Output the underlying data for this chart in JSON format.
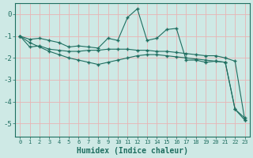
{
  "xlabel": "Humidex (Indice chaleur)",
  "background_color": "#cee9e5",
  "grid_color": "#e8b4b4",
  "line_color": "#1e6e60",
  "xlim": [
    -0.5,
    23.5
  ],
  "ylim": [
    -5.6,
    0.5
  ],
  "yticks": [
    0,
    -1,
    -2,
    -3,
    -4,
    -5
  ],
  "xticks": [
    0,
    1,
    2,
    3,
    4,
    5,
    6,
    7,
    8,
    9,
    10,
    11,
    12,
    13,
    14,
    15,
    16,
    17,
    18,
    19,
    20,
    21,
    22,
    23
  ],
  "line1_x": [
    0,
    1,
    2,
    3,
    4,
    5,
    6,
    7,
    8,
    9,
    10,
    11,
    12,
    13,
    14,
    15,
    16,
    17,
    18,
    19,
    20,
    21,
    22,
    23
  ],
  "line1_y": [
    -1.0,
    -1.15,
    -1.1,
    -1.2,
    -1.3,
    -1.5,
    -1.45,
    -1.5,
    -1.55,
    -1.1,
    -1.2,
    -0.15,
    0.25,
    -1.2,
    -1.1,
    -0.7,
    -0.65,
    -2.1,
    -2.1,
    -2.2,
    -2.15,
    -2.2,
    -4.35,
    -4.75
  ],
  "line2_x": [
    0,
    1,
    2,
    3,
    4,
    5,
    6,
    7,
    8,
    9,
    10,
    11,
    12,
    13,
    14,
    15,
    16,
    17,
    18,
    19,
    20,
    21,
    22,
    23
  ],
  "line2_y": [
    -1.0,
    -1.5,
    -1.45,
    -1.6,
    -1.65,
    -1.7,
    -1.7,
    -1.65,
    -1.65,
    -1.6,
    -1.6,
    -1.6,
    -1.65,
    -1.65,
    -1.7,
    -1.7,
    -1.75,
    -1.8,
    -1.85,
    -1.9,
    -1.9,
    -2.0,
    -2.15,
    -4.85
  ],
  "line3_x": [
    0,
    1,
    2,
    3,
    4,
    5,
    6,
    7,
    8,
    9,
    10,
    11,
    12,
    13,
    14,
    15,
    16,
    17,
    18,
    19,
    20,
    21,
    22,
    23
  ],
  "line3_y": [
    -1.0,
    -1.3,
    -1.5,
    -1.7,
    -1.85,
    -2.0,
    -2.1,
    -2.2,
    -2.3,
    -2.2,
    -2.1,
    -2.0,
    -1.9,
    -1.85,
    -1.85,
    -1.9,
    -1.95,
    -2.0,
    -2.05,
    -2.1,
    -2.15,
    -2.2,
    -4.35,
    -4.85
  ]
}
